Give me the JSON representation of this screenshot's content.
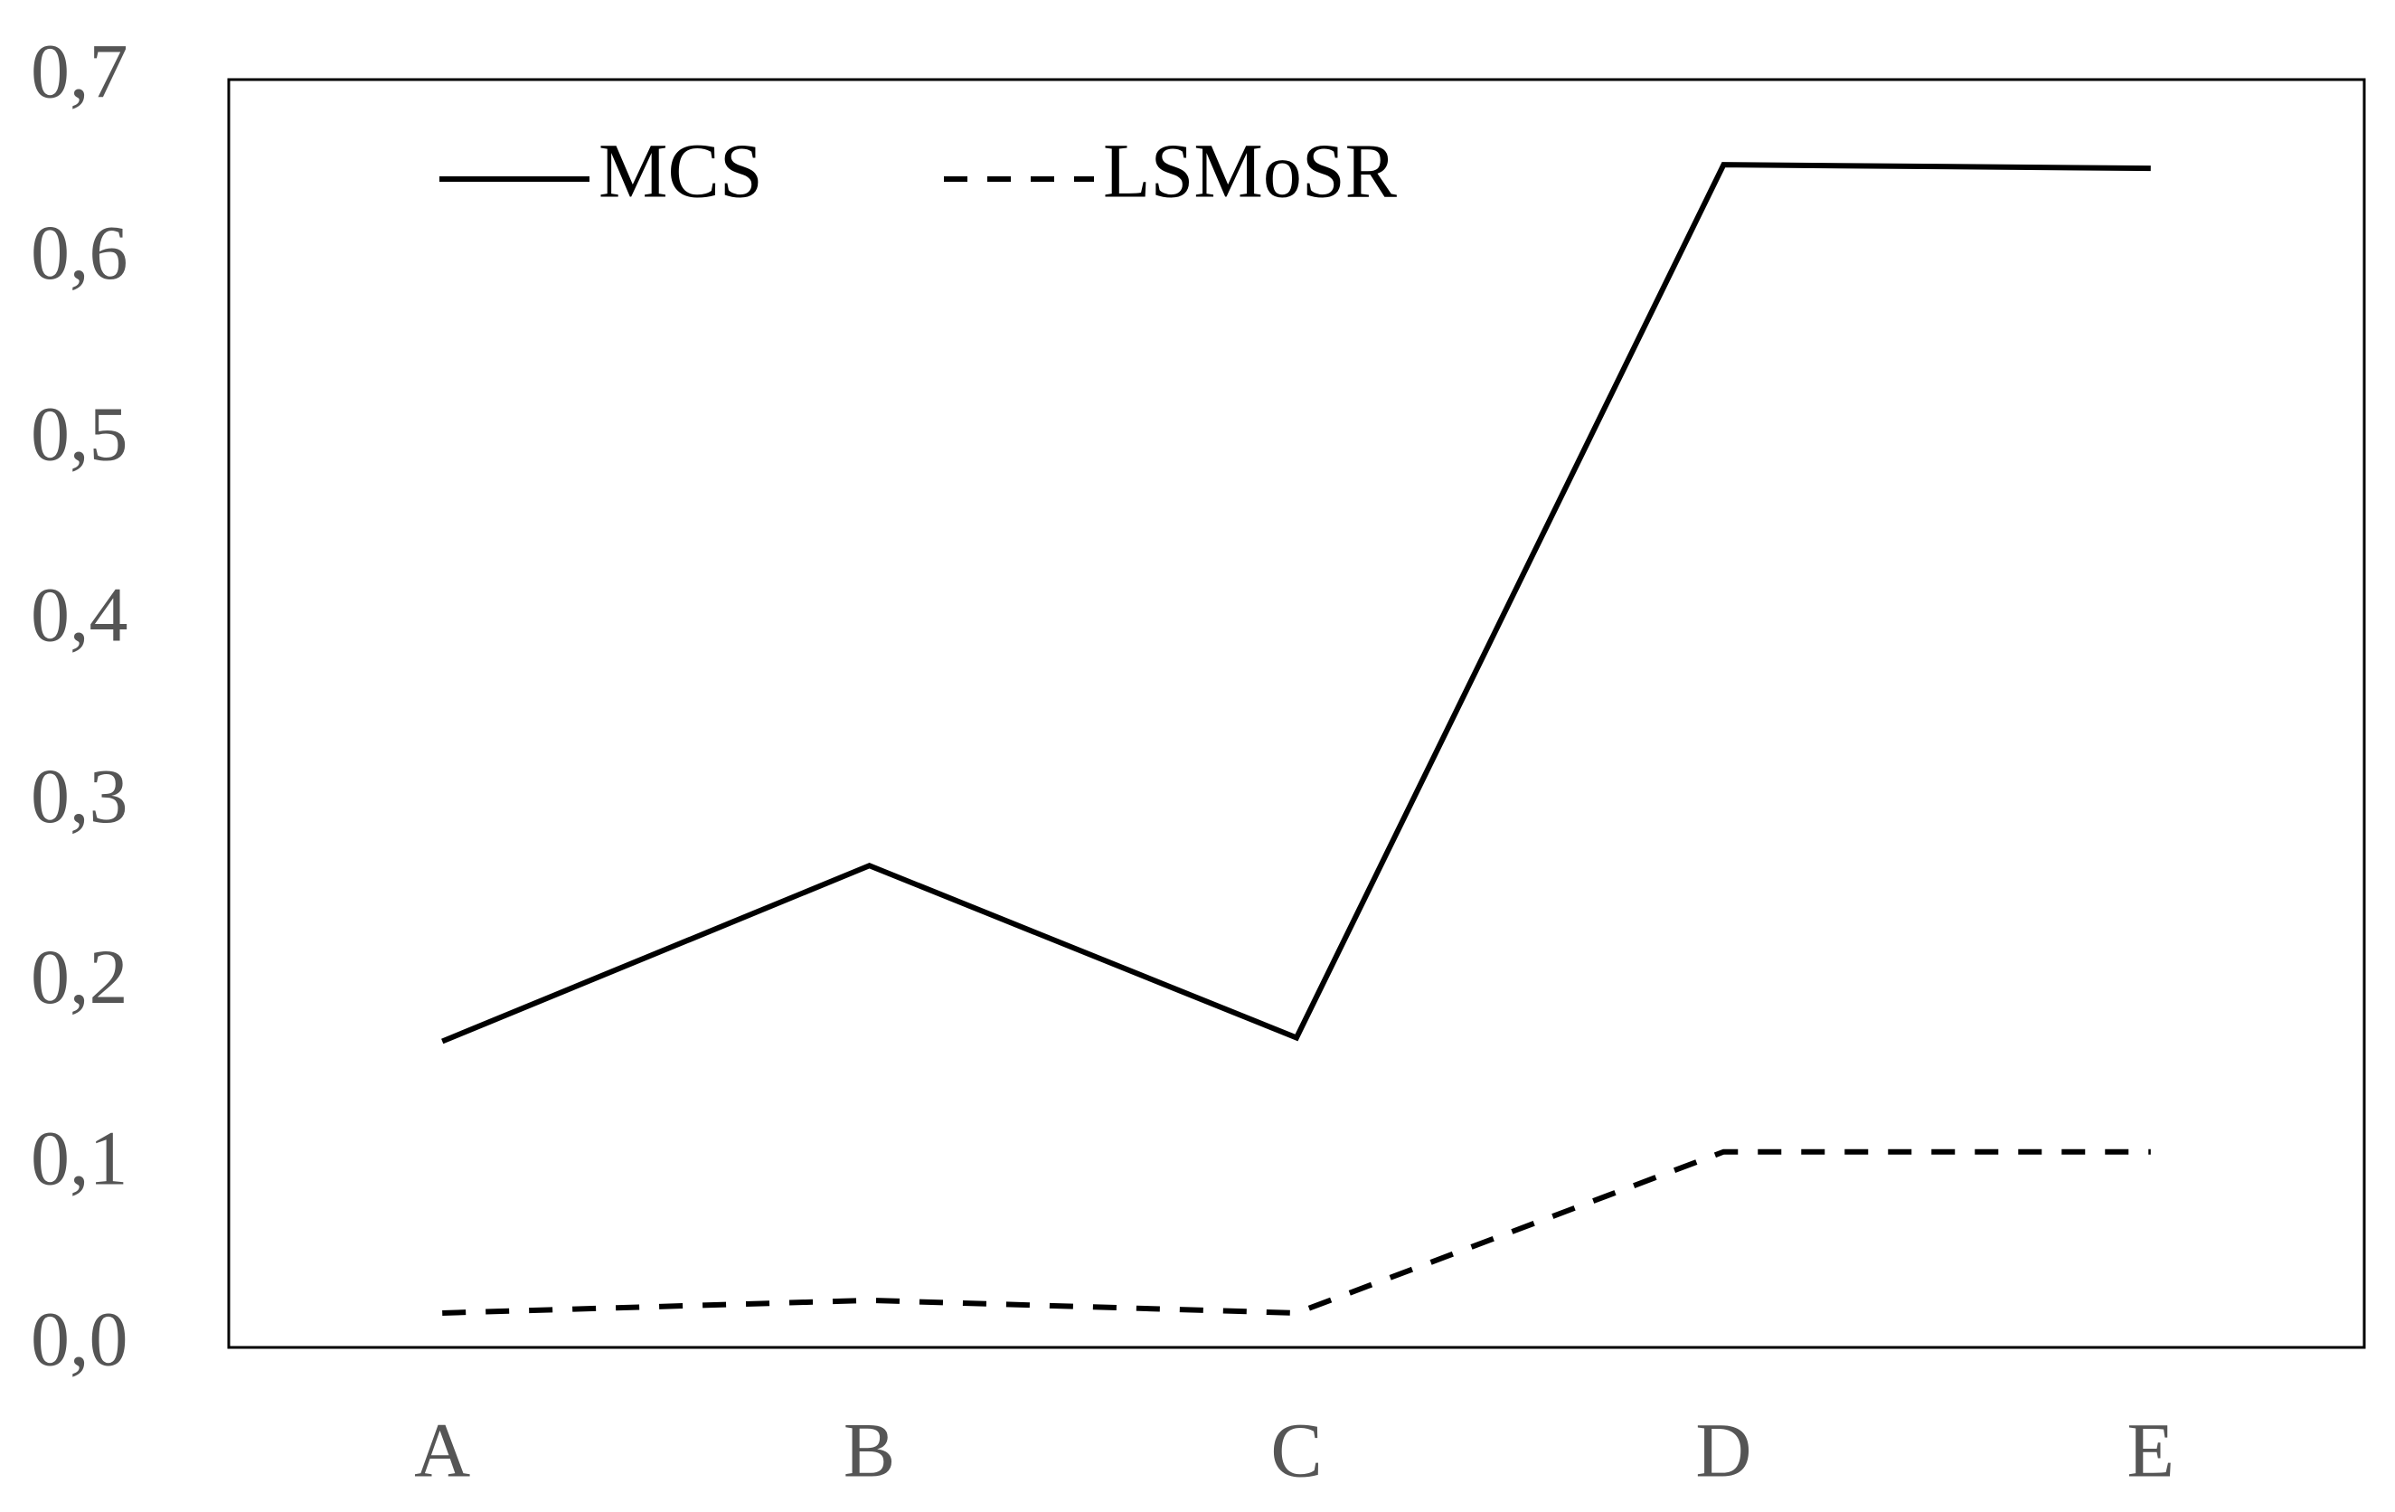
{
  "chart_data": {
    "type": "line",
    "categories": [
      "A",
      "B",
      "C",
      "D",
      "E"
    ],
    "series": [
      {
        "name": "MCS",
        "color": "#000000",
        "line_style": "solid",
        "values": [
          0.169,
          0.266,
          0.171,
          0.653,
          0.651
        ]
      },
      {
        "name": "LSMoSR",
        "color": "#000000",
        "line_style": "dashed",
        "values": [
          0.019,
          0.026,
          0.019,
          0.108,
          0.108
        ]
      }
    ],
    "ylim": [
      0,
      0.7
    ],
    "yticks": [
      {
        "value": 0,
        "label": "0,0"
      },
      {
        "value": 0.1,
        "label": "0,1"
      },
      {
        "value": 0.2,
        "label": "0,2"
      },
      {
        "value": 0.3,
        "label": "0,3"
      },
      {
        "value": 0.4,
        "label": "0,4"
      },
      {
        "value": 0.5,
        "label": "0,5"
      },
      {
        "value": 0.6,
        "label": "0,6"
      },
      {
        "value": 0.7,
        "label": "0,7"
      }
    ],
    "grid": false,
    "legend": "top-left"
  }
}
